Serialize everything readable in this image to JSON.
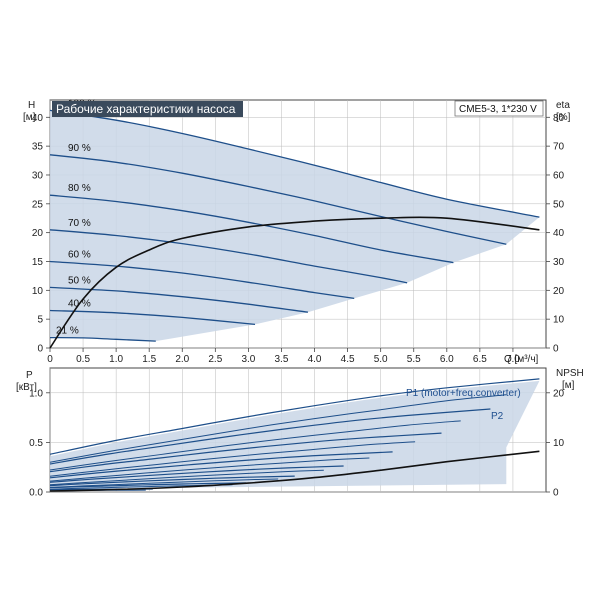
{
  "title": "Рабочие характеристики насоса",
  "model": "CME5-3, 1*230 V",
  "colors": {
    "region": "#c9d6e6",
    "curve": "#1e4f8a",
    "eta": "#111111",
    "title_bg": "#3a4a5c"
  },
  "chart_data": [
    {
      "type": "line",
      "panel": "head",
      "xlabel": "Q [м³/ч]",
      "ylabel_left": [
        "H",
        "[м]"
      ],
      "ylabel_right": [
        "eta",
        "[%]"
      ],
      "xlim": [
        0,
        7.5
      ],
      "ylim": [
        0,
        43
      ],
      "ylim_right": [
        0,
        86
      ],
      "x_ticks": [
        "0",
        "0.5",
        "1.0",
        "1.5",
        "2.0",
        "2.5",
        "3.0",
        "3.5",
        "4.0",
        "4.5",
        "5.0",
        "5.5",
        "6.0",
        "6.5",
        "7.0"
      ],
      "y_ticks": [
        "0",
        "5",
        "10",
        "15",
        "20",
        "25",
        "30",
        "35",
        "40"
      ],
      "y_ticks_right": [
        "0",
        "10",
        "20",
        "30",
        "40",
        "50",
        "60",
        "70",
        "80"
      ],
      "grid": true,
      "speed_labels": [
        "100 %",
        "90 %",
        "80 %",
        "70 %",
        "60 %",
        "50 %",
        "40 %",
        "21 %"
      ],
      "series": [
        {
          "speed": "100 %",
          "x": [
            0,
            1,
            2,
            3,
            4,
            5,
            6,
            7.4
          ],
          "y": [
            41.2,
            39.5,
            37.2,
            34.5,
            31.7,
            28.7,
            25.8,
            22.7
          ]
        },
        {
          "speed": "90 %",
          "x": [
            0,
            1,
            2,
            3,
            4,
            5,
            6,
            6.9
          ],
          "y": [
            33.5,
            32.2,
            30.3,
            28.0,
            25.5,
            22.8,
            20.2,
            18.0
          ]
        },
        {
          "speed": "80 %",
          "x": [
            0,
            1,
            2,
            3,
            4,
            5,
            6.1
          ],
          "y": [
            26.5,
            25.4,
            23.8,
            21.8,
            19.5,
            17.0,
            14.8
          ]
        },
        {
          "speed": "70 %",
          "x": [
            0,
            1,
            2,
            3,
            4,
            5,
            5.4
          ],
          "y": [
            20.5,
            19.5,
            18.1,
            16.3,
            14.2,
            12.2,
            11.3
          ]
        },
        {
          "speed": "60 %",
          "x": [
            0,
            1,
            2,
            3,
            4,
            4.6
          ],
          "y": [
            15.0,
            14.2,
            13.0,
            11.4,
            9.6,
            8.6
          ]
        },
        {
          "speed": "50 %",
          "x": [
            0,
            1,
            2,
            3,
            3.9
          ],
          "y": [
            10.5,
            9.9,
            8.9,
            7.6,
            6.2
          ]
        },
        {
          "speed": "40 %",
          "x": [
            0,
            1,
            2,
            3.1
          ],
          "y": [
            6.5,
            6.1,
            5.3,
            4.1
          ]
        },
        {
          "speed": "21 %",
          "x": [
            0,
            0.5,
            1.0,
            1.6
          ],
          "y": [
            1.8,
            1.75,
            1.5,
            1.2
          ]
        }
      ],
      "eta_series": [
        {
          "x": [
            0,
            0.5,
            1.0,
            1.5,
            2.0,
            3.0,
            4.0,
            5.0,
            6.0,
            7.4
          ],
          "y": [
            0,
            17,
            28,
            34,
            38,
            42,
            44,
            45,
            45,
            41
          ]
        }
      ]
    },
    {
      "type": "line",
      "panel": "power",
      "ylabel_left": [
        "P",
        "[кВт]"
      ],
      "ylabel_right": [
        "NPSH",
        "[м]"
      ],
      "xlim": [
        0,
        7.5
      ],
      "ylim": [
        0,
        1.25
      ],
      "ylim_right": [
        0,
        25
      ],
      "y_ticks": [
        "0.0",
        "0.5",
        "1.0"
      ],
      "y_ticks_right": [
        "0",
        "10",
        "20"
      ],
      "grid": true,
      "legend_labels": [
        "P1 (motor+freq.converter)",
        "P2"
      ],
      "series": [
        {
          "name": "P1 (motor+freq.converter)",
          "x": [
            0,
            1,
            2,
            3,
            4,
            5,
            6,
            7.4
          ],
          "y": [
            0.36,
            0.5,
            0.62,
            0.74,
            0.85,
            0.95,
            1.03,
            1.12
          ]
        },
        {
          "name": "P2",
          "x": [
            0,
            1,
            2,
            3,
            4,
            5,
            6,
            6.9
          ],
          "y": [
            0.29,
            0.41,
            0.52,
            0.63,
            0.73,
            0.82,
            0.91,
            0.97
          ]
        }
      ],
      "npsh_series": [
        {
          "x": [
            0,
            1,
            2,
            3,
            4,
            5,
            6,
            7.4
          ],
          "y": [
            0.2,
            0.5,
            1.0,
            1.8,
            2.9,
            4.4,
            6.1,
            8.2
          ]
        }
      ]
    }
  ]
}
